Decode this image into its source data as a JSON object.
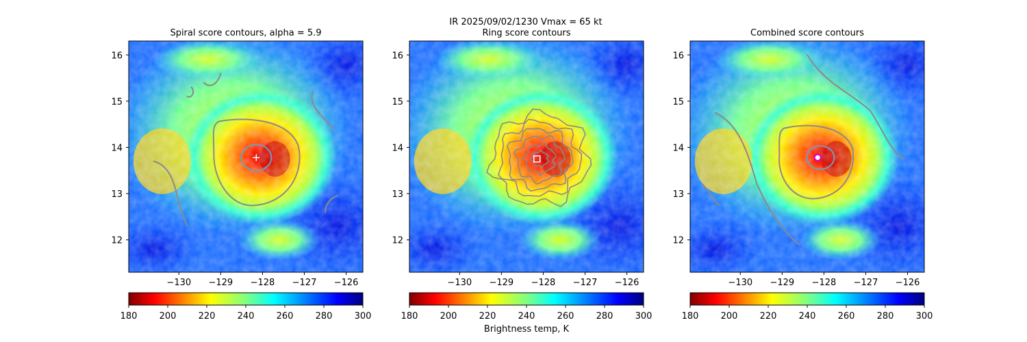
{
  "suptitle": "IR  2025/09/02/1230    Vmax = 65 kt",
  "colors": {
    "contour_gray": "#8a8a8a",
    "contour_blue": "#6f9fbf",
    "marker_white": "#ffffff",
    "marker_magenta": "#d400d4"
  },
  "chart_data": [
    {
      "type": "heatmap",
      "title": "Spiral score contours, alpha =  5.9",
      "xlabel": "",
      "ylabel": "",
      "xlim": [
        -131.2,
        -125.6
      ],
      "ylim": [
        11.3,
        16.3
      ],
      "xticks": [
        -130,
        -129,
        -128,
        -127,
        -126
      ],
      "xtick_labels": [
        "−130",
        "−129",
        "−128",
        "−127",
        "−126"
      ],
      "yticks": [
        12,
        13,
        14,
        15,
        16
      ],
      "ytick_labels": [
        "12",
        "13",
        "14",
        "15",
        "16"
      ],
      "field": "Brightness temperature (IR)",
      "colormap": "jet_r",
      "colorbar": {
        "range": [
          180,
          300
        ],
        "ticks": [
          180,
          200,
          220,
          240,
          260,
          280,
          300
        ],
        "label": ""
      },
      "eye_center": [
        -128.1,
        13.75
      ],
      "eye_temp_min": 185,
      "marker": {
        "symbol": "plus",
        "position": [
          -128.15,
          13.78
        ]
      },
      "contours": "spiral score"
    },
    {
      "type": "heatmap",
      "title": "Ring score contours",
      "xlabel": "",
      "ylabel": "",
      "xlim": [
        -131.2,
        -125.6
      ],
      "ylim": [
        11.3,
        16.3
      ],
      "xticks": [
        -130,
        -129,
        -128,
        -127,
        -126
      ],
      "xtick_labels": [
        "−130",
        "−129",
        "−128",
        "−127",
        "−126"
      ],
      "yticks": [
        12,
        13,
        14,
        15,
        16
      ],
      "ytick_labels": [
        "12",
        "13",
        "14",
        "15",
        "16"
      ],
      "field": "Brightness temperature (IR)",
      "colormap": "jet_r",
      "colorbar": {
        "range": [
          180,
          300
        ],
        "ticks": [
          180,
          200,
          220,
          240,
          260,
          280,
          300
        ],
        "label": "Brightness temp, K"
      },
      "eye_center": [
        -128.1,
        13.75
      ],
      "eye_temp_min": 185,
      "marker": {
        "symbol": "square",
        "position": [
          -128.15,
          13.75
        ]
      },
      "contours": "ring score"
    },
    {
      "type": "heatmap",
      "title": "Combined score contours",
      "xlabel": "",
      "ylabel": "",
      "xlim": [
        -131.2,
        -125.6
      ],
      "ylim": [
        11.3,
        16.3
      ],
      "xticks": [
        -130,
        -129,
        -128,
        -127,
        -126
      ],
      "xtick_labels": [
        "−130",
        "−129",
        "−128",
        "−127",
        "−126"
      ],
      "yticks": [
        12,
        13,
        14,
        15,
        16
      ],
      "ytick_labels": [
        "12",
        "13",
        "14",
        "15",
        "16"
      ],
      "field": "Brightness temperature (IR)",
      "colormap": "jet_r",
      "colorbar": {
        "range": [
          180,
          300
        ],
        "ticks": [
          180,
          200,
          220,
          240,
          260,
          280,
          300
        ],
        "label": ""
      },
      "eye_center": [
        -128.1,
        13.75
      ],
      "eye_temp_min": 185,
      "marker": {
        "symbol": "circle",
        "position": [
          -128.15,
          13.78
        ]
      },
      "contours": "combined score"
    }
  ]
}
